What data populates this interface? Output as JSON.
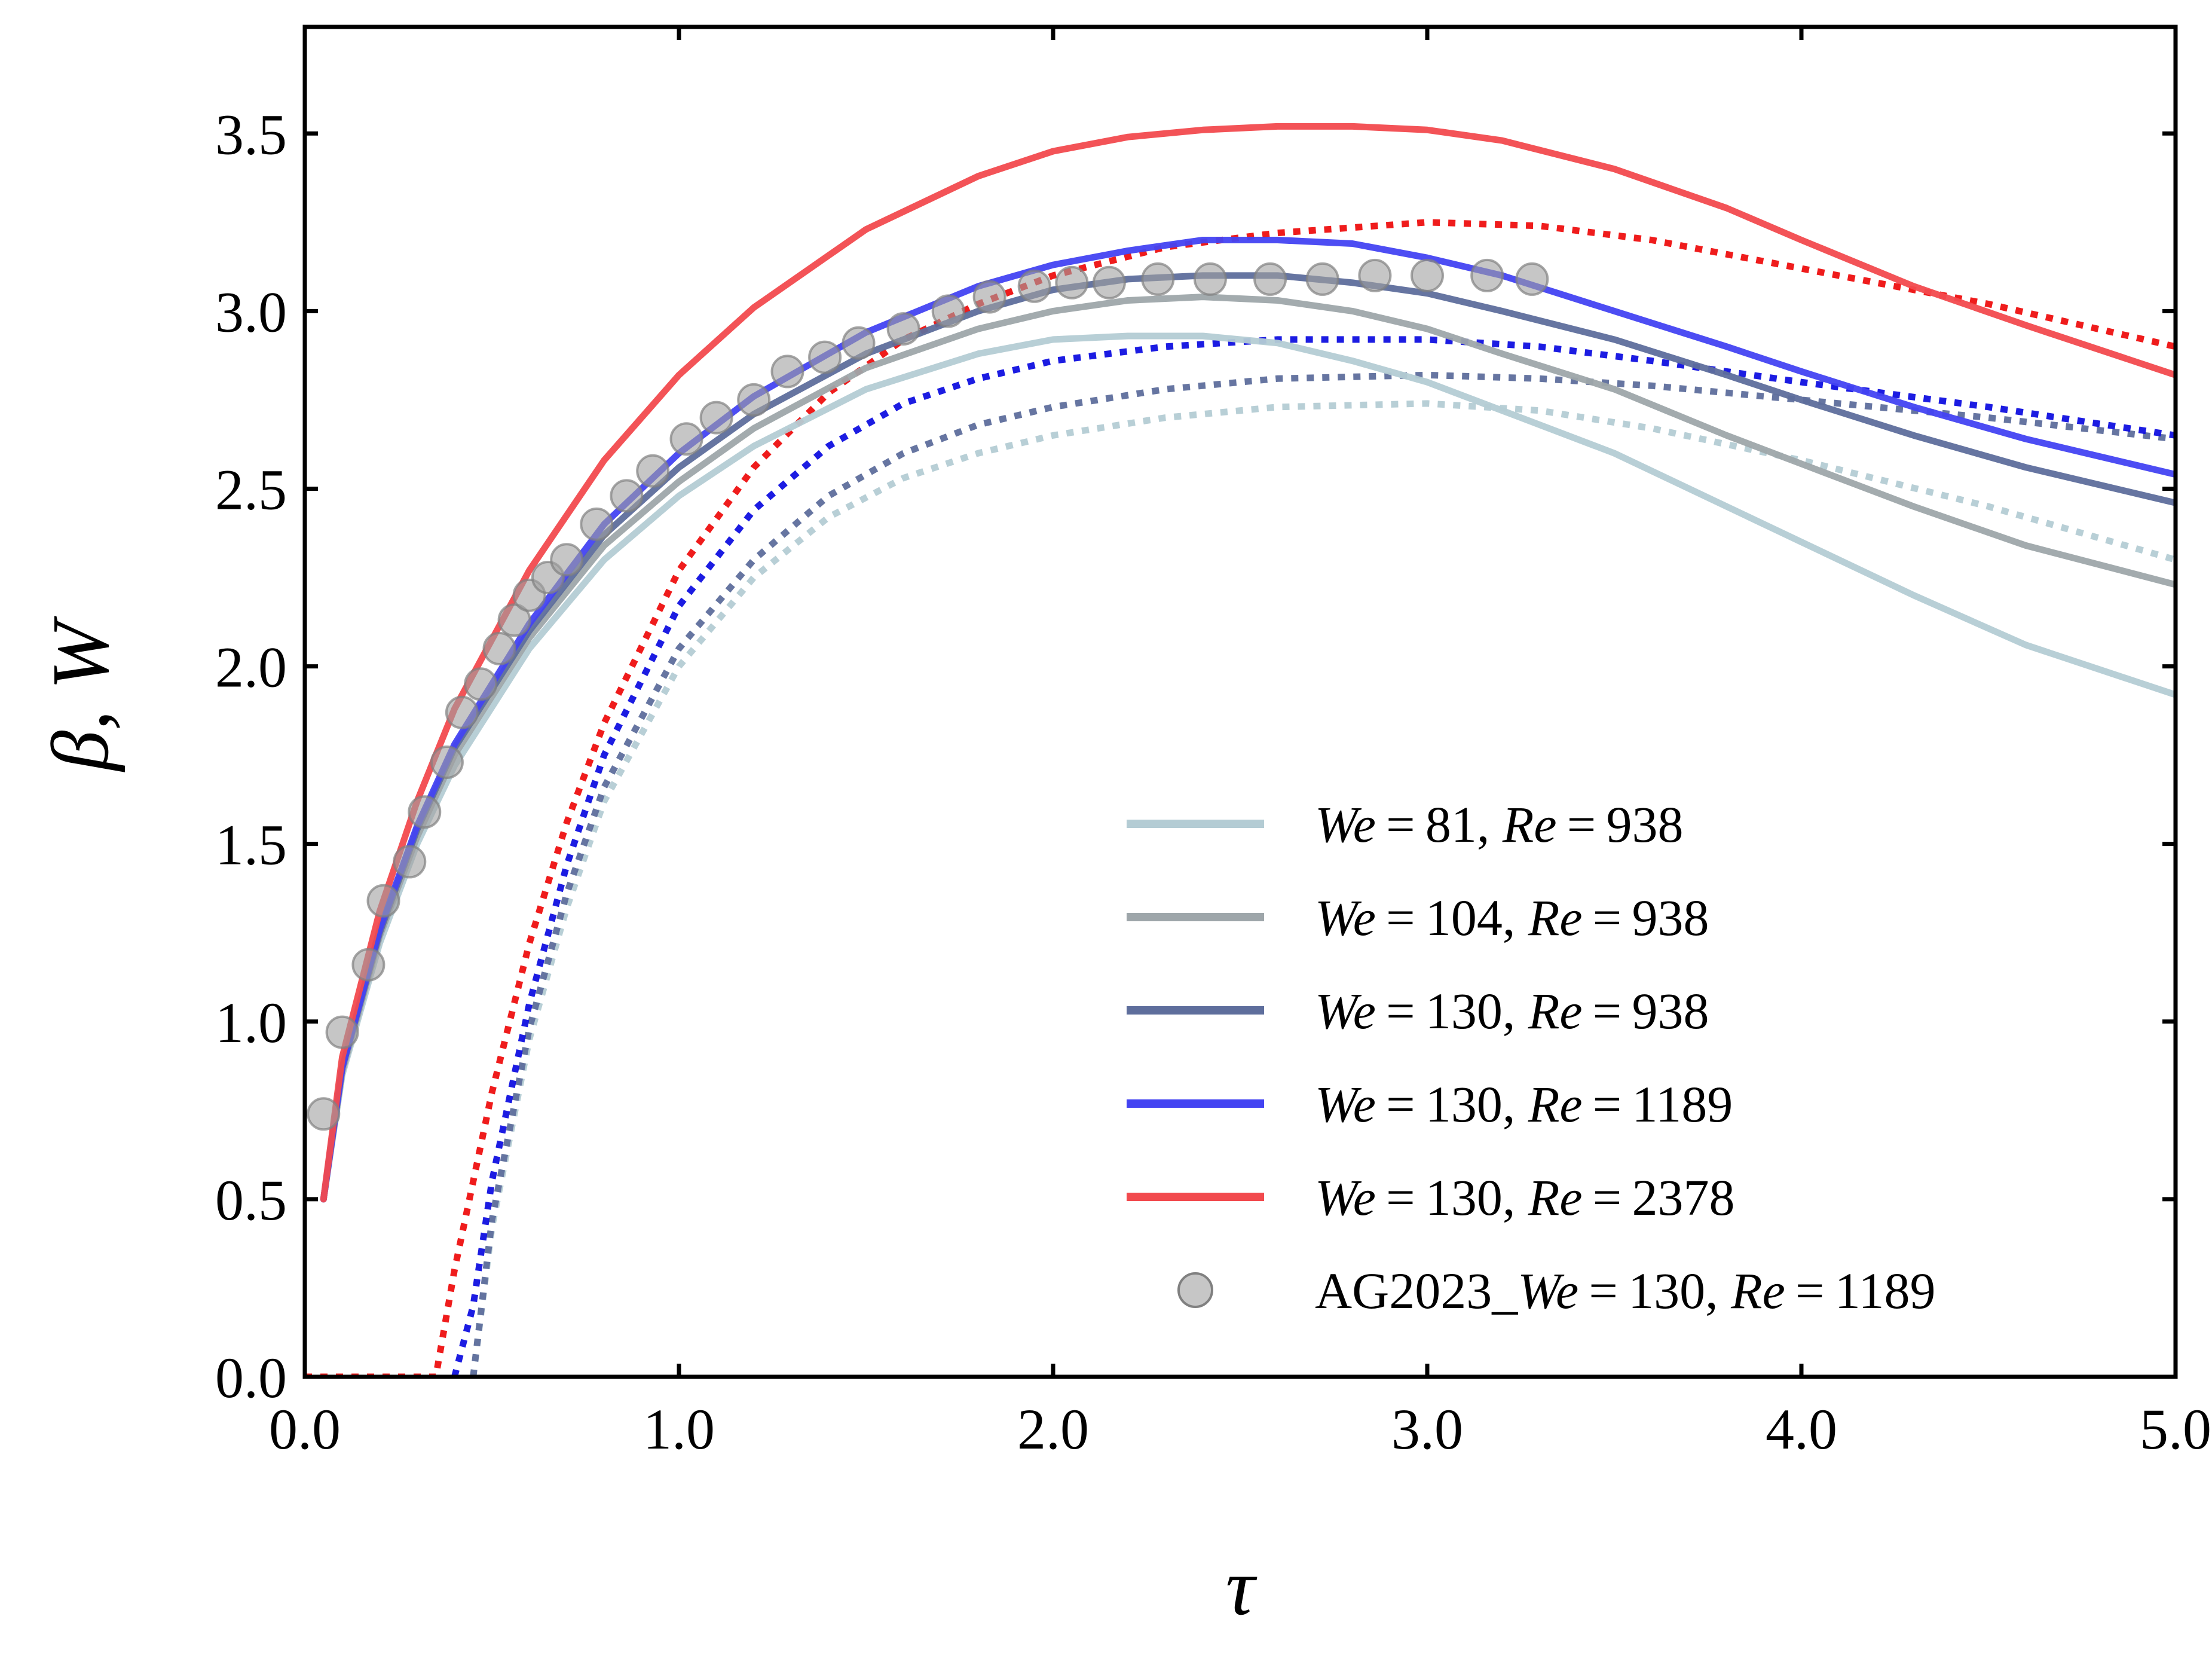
{
  "chart_data": {
    "type": "line",
    "title": "",
    "xlabel": "τ",
    "ylabel": "β, W",
    "xlim": [
      0.0,
      5.0
    ],
    "ylim": [
      0.0,
      3.8
    ],
    "xticks": [
      0.0,
      1.0,
      2.0,
      3.0,
      4.0,
      5.0
    ],
    "xtick_labels": [
      "0.0",
      "1.0",
      "2.0",
      "3.0",
      "4.0",
      "5.0"
    ],
    "yticks": [
      0.0,
      0.5,
      1.0,
      1.5,
      2.0,
      2.5,
      3.0,
      3.5
    ],
    "ytick_labels": [
      "0.0",
      "0.5",
      "1.0",
      "1.5",
      "2.0",
      "2.5",
      "3.0",
      "3.5"
    ],
    "grid": false,
    "legend_position": "bottom-right",
    "series": [
      {
        "name": "We = 81, Re = 938",
        "legend": {
          "we": "81",
          "re": "938"
        },
        "color": "#b4ccd4",
        "solid_x": [
          0.05,
          0.1,
          0.2,
          0.3,
          0.4,
          0.6,
          0.8,
          1.0,
          1.2,
          1.5,
          1.8,
          2.0,
          2.2,
          2.4,
          2.6,
          2.8,
          3.0,
          3.2,
          3.5,
          3.8,
          4.0,
          4.3,
          4.6,
          5.0
        ],
        "solid_y": [
          0.5,
          0.85,
          1.22,
          1.5,
          1.72,
          2.05,
          2.3,
          2.48,
          2.62,
          2.78,
          2.88,
          2.92,
          2.93,
          2.93,
          2.91,
          2.86,
          2.8,
          2.72,
          2.6,
          2.45,
          2.35,
          2.2,
          2.06,
          1.92
        ],
        "dotted_x": [
          0.45,
          0.5,
          0.6,
          0.7,
          0.8,
          1.0,
          1.2,
          1.4,
          1.6,
          1.8,
          2.0,
          2.3,
          2.6,
          3.0,
          3.3,
          3.6,
          4.0,
          4.5,
          5.0
        ],
        "dotted_y": [
          0.0,
          0.42,
          0.95,
          1.32,
          1.62,
          2.0,
          2.25,
          2.42,
          2.53,
          2.6,
          2.65,
          2.7,
          2.73,
          2.74,
          2.72,
          2.67,
          2.58,
          2.45,
          2.3
        ]
      },
      {
        "name": "We = 104, Re = 938",
        "legend": {
          "we": "104",
          "re": "938"
        },
        "color": "#9ea6aa",
        "solid_x": [
          0.05,
          0.1,
          0.2,
          0.3,
          0.4,
          0.6,
          0.8,
          1.0,
          1.2,
          1.5,
          1.8,
          2.0,
          2.2,
          2.4,
          2.6,
          2.8,
          3.0,
          3.2,
          3.5,
          3.8,
          4.0,
          4.3,
          4.6,
          5.0
        ],
        "solid_y": [
          0.5,
          0.86,
          1.24,
          1.52,
          1.75,
          2.08,
          2.34,
          2.52,
          2.67,
          2.84,
          2.95,
          3.0,
          3.03,
          3.04,
          3.03,
          3.0,
          2.95,
          2.88,
          2.78,
          2.65,
          2.57,
          2.45,
          2.34,
          2.23
        ]
      },
      {
        "name": "We = 130, Re = 938",
        "legend": {
          "we": "130",
          "re": "938"
        },
        "color": "#5e6e9c",
        "solid_x": [
          0.05,
          0.1,
          0.2,
          0.3,
          0.4,
          0.6,
          0.8,
          1.0,
          1.2,
          1.5,
          1.8,
          2.0,
          2.2,
          2.4,
          2.6,
          2.8,
          3.0,
          3.2,
          3.5,
          3.8,
          4.0,
          4.3,
          4.6,
          5.0
        ],
        "solid_y": [
          0.5,
          0.87,
          1.25,
          1.54,
          1.77,
          2.1,
          2.37,
          2.56,
          2.71,
          2.88,
          3.0,
          3.06,
          3.09,
          3.1,
          3.1,
          3.08,
          3.05,
          3.0,
          2.92,
          2.82,
          2.75,
          2.65,
          2.56,
          2.46
        ],
        "dotted_x": [
          0.45,
          0.5,
          0.6,
          0.7,
          0.8,
          1.0,
          1.2,
          1.4,
          1.6,
          1.8,
          2.0,
          2.3,
          2.6,
          3.0,
          3.3,
          3.6,
          4.0,
          4.5,
          5.0
        ],
        "dotted_y": [
          0.0,
          0.44,
          0.98,
          1.36,
          1.66,
          2.05,
          2.3,
          2.48,
          2.6,
          2.68,
          2.73,
          2.78,
          2.81,
          2.82,
          2.81,
          2.79,
          2.75,
          2.7,
          2.64
        ]
      },
      {
        "name": "We = 130, Re = 1189",
        "legend": {
          "we": "130",
          "re": "1189"
        },
        "color": "#4343f2",
        "solid_x": [
          0.05,
          0.1,
          0.2,
          0.3,
          0.4,
          0.6,
          0.8,
          1.0,
          1.2,
          1.5,
          1.8,
          2.0,
          2.2,
          2.4,
          2.6,
          2.8,
          3.0,
          3.2,
          3.5,
          3.8,
          4.0,
          4.3,
          4.6,
          5.0
        ],
        "solid_y": [
          0.5,
          0.87,
          1.26,
          1.55,
          1.78,
          2.12,
          2.4,
          2.6,
          2.76,
          2.94,
          3.07,
          3.13,
          3.17,
          3.2,
          3.2,
          3.19,
          3.15,
          3.1,
          3.0,
          2.9,
          2.83,
          2.73,
          2.64,
          2.54
        ],
        "dotted_x": [
          0.4,
          0.45,
          0.5,
          0.6,
          0.7,
          0.8,
          1.0,
          1.2,
          1.4,
          1.6,
          1.8,
          2.0,
          2.3,
          2.6,
          3.0,
          3.3,
          3.6,
          4.0,
          4.5,
          5.0
        ],
        "dotted_y": [
          0.0,
          0.2,
          0.55,
          1.05,
          1.44,
          1.75,
          2.17,
          2.44,
          2.62,
          2.74,
          2.81,
          2.86,
          2.9,
          2.92,
          2.92,
          2.9,
          2.86,
          2.8,
          2.73,
          2.65
        ],
        "dotted_color": "#1010e0"
      },
      {
        "name": "We = 130, Re = 2378",
        "legend": {
          "we": "130",
          "re": "2378"
        },
        "color": "#f24a4e",
        "solid_x": [
          0.05,
          0.1,
          0.2,
          0.3,
          0.4,
          0.6,
          0.8,
          1.0,
          1.2,
          1.5,
          1.8,
          2.0,
          2.2,
          2.4,
          2.6,
          2.8,
          3.0,
          3.2,
          3.5,
          3.8,
          4.0,
          4.3,
          4.6,
          5.0
        ],
        "solid_y": [
          0.5,
          0.9,
          1.31,
          1.62,
          1.88,
          2.27,
          2.58,
          2.82,
          3.01,
          3.23,
          3.38,
          3.45,
          3.49,
          3.51,
          3.52,
          3.52,
          3.51,
          3.48,
          3.4,
          3.29,
          3.2,
          3.07,
          2.96,
          2.82
        ],
        "dotted_x": [
          0.0,
          0.2,
          0.35,
          0.4,
          0.5,
          0.6,
          0.7,
          0.8,
          1.0,
          1.2,
          1.4,
          1.6,
          1.8,
          2.0,
          2.3,
          2.6,
          3.0,
          3.3,
          3.6,
          4.0,
          4.5,
          5.0
        ],
        "dotted_y": [
          0.0,
          0.0,
          0.0,
          0.3,
          0.8,
          1.22,
          1.56,
          1.84,
          2.27,
          2.56,
          2.77,
          2.92,
          3.02,
          3.1,
          3.18,
          3.22,
          3.25,
          3.24,
          3.2,
          3.12,
          3.02,
          2.9
        ],
        "dotted_color": "#ee1010"
      }
    ],
    "scatter": {
      "name": "AG2023_We = 130, Re = 1189",
      "legend": {
        "prefix": "AG2023_",
        "we": "130",
        "re": "1189"
      },
      "color": "#a0a0a0",
      "x": [
        0.05,
        0.1,
        0.17,
        0.21,
        0.28,
        0.32,
        0.38,
        0.42,
        0.47,
        0.52,
        0.56,
        0.6,
        0.65,
        0.7,
        0.78,
        0.86,
        0.93,
        1.02,
        1.1,
        1.2,
        1.29,
        1.39,
        1.48,
        1.6,
        1.72,
        1.83,
        1.95,
        2.05,
        2.15,
        2.28,
        2.42,
        2.58,
        2.72,
        2.86,
        3.0,
        3.16,
        3.28
      ],
      "y": [
        0.74,
        0.97,
        1.16,
        1.34,
        1.45,
        1.59,
        1.73,
        1.87,
        1.95,
        2.05,
        2.13,
        2.2,
        2.25,
        2.3,
        2.4,
        2.48,
        2.55,
        2.64,
        2.7,
        2.75,
        2.83,
        2.87,
        2.91,
        2.95,
        3.0,
        3.04,
        3.07,
        3.08,
        3.08,
        3.09,
        3.09,
        3.09,
        3.09,
        3.1,
        3.1,
        3.1,
        3.09
      ]
    }
  }
}
